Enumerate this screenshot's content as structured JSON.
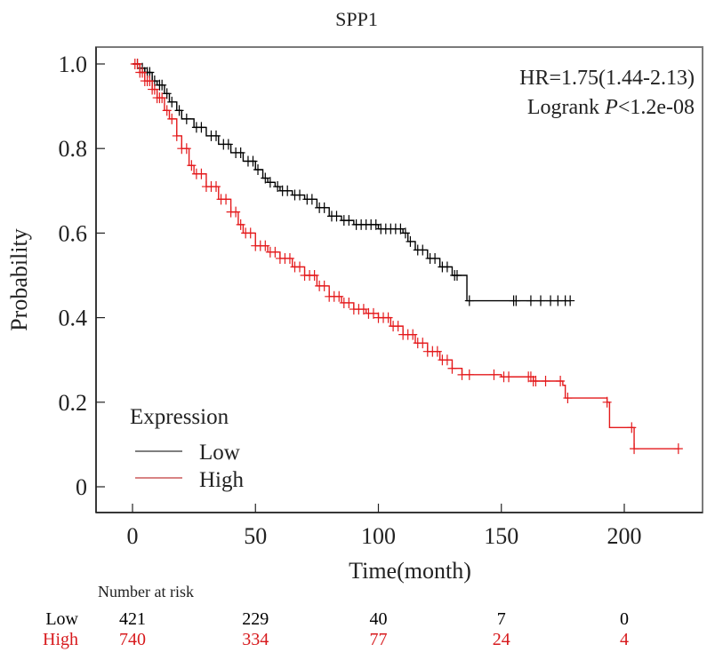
{
  "chart_data": {
    "type": "line",
    "subtype": "kaplan-meier",
    "title": "SPP1",
    "xlabel": "Time(month)",
    "ylabel": "Probability",
    "xlim": [
      -15,
      231
    ],
    "ylim": [
      -0.06,
      1.04
    ],
    "xticks": [
      0,
      50,
      100,
      150,
      200
    ],
    "xtick_labels": [
      "0",
      "50",
      "100",
      "150",
      "200"
    ],
    "yticks": [
      0,
      0.2,
      0.4,
      0.6,
      0.8,
      1.0
    ],
    "ytick_labels": [
      "0",
      "0.2",
      "0.4",
      "0.6",
      "0.8",
      "1.0"
    ],
    "grid": false,
    "annotation": {
      "hr_line": "HR=1.75(1.44-2.13)",
      "logrank_prefix": "Logrank ",
      "logrank_p": "P",
      "logrank_suffix": "<1.2e-08",
      "placement": "top-right"
    },
    "legend": {
      "title": "Expression",
      "placement": "bottom-left",
      "entries": [
        {
          "label": "Low",
          "color": "#000000"
        },
        {
          "label": "High",
          "color": "#e41a1c"
        }
      ]
    },
    "series": [
      {
        "name": "Low",
        "color": "#000000",
        "points": [
          [
            0,
            1.0
          ],
          [
            3,
            0.99
          ],
          [
            5,
            0.98
          ],
          [
            8,
            0.96
          ],
          [
            10,
            0.95
          ],
          [
            13,
            0.93
          ],
          [
            15,
            0.91
          ],
          [
            18,
            0.89
          ],
          [
            20,
            0.87
          ],
          [
            25,
            0.85
          ],
          [
            30,
            0.83
          ],
          [
            35,
            0.81
          ],
          [
            40,
            0.79
          ],
          [
            45,
            0.77
          ],
          [
            50,
            0.75
          ],
          [
            53,
            0.73
          ],
          [
            55,
            0.72
          ],
          [
            58,
            0.71
          ],
          [
            60,
            0.7
          ],
          [
            65,
            0.69
          ],
          [
            70,
            0.68
          ],
          [
            75,
            0.66
          ],
          [
            80,
            0.64
          ],
          [
            85,
            0.63
          ],
          [
            90,
            0.62
          ],
          [
            100,
            0.61
          ],
          [
            110,
            0.6
          ],
          [
            112,
            0.58
          ],
          [
            115,
            0.56
          ],
          [
            120,
            0.54
          ],
          [
            125,
            0.52
          ],
          [
            130,
            0.5
          ],
          [
            136,
            0.44
          ],
          [
            178,
            0.44
          ]
        ],
        "censor_times": [
          2,
          4,
          5,
          6,
          7,
          8,
          9,
          11,
          12,
          14,
          16,
          19,
          22,
          26,
          28,
          32,
          34,
          37,
          39,
          42,
          44,
          47,
          49,
          51,
          54,
          56,
          59,
          61,
          63,
          66,
          68,
          71,
          73,
          76,
          78,
          81,
          83,
          86,
          88,
          91,
          93,
          95,
          97,
          99,
          101,
          103,
          105,
          107,
          109,
          111,
          113,
          116,
          118,
          121,
          123,
          126,
          128,
          131,
          132,
          137,
          155,
          156,
          162,
          166,
          170,
          173,
          176,
          178
        ]
      },
      {
        "name": "High",
        "color": "#e41a1c",
        "points": [
          [
            0,
            1.0
          ],
          [
            3,
            0.98
          ],
          [
            5,
            0.96
          ],
          [
            8,
            0.94
          ],
          [
            10,
            0.92
          ],
          [
            13,
            0.89
          ],
          [
            15,
            0.87
          ],
          [
            18,
            0.83
          ],
          [
            20,
            0.8
          ],
          [
            23,
            0.76
          ],
          [
            25,
            0.74
          ],
          [
            30,
            0.71
          ],
          [
            35,
            0.68
          ],
          [
            40,
            0.65
          ],
          [
            43,
            0.62
          ],
          [
            45,
            0.6
          ],
          [
            50,
            0.57
          ],
          [
            55,
            0.555
          ],
          [
            60,
            0.54
          ],
          [
            65,
            0.52
          ],
          [
            70,
            0.5
          ],
          [
            75,
            0.475
          ],
          [
            80,
            0.45
          ],
          [
            85,
            0.435
          ],
          [
            90,
            0.42
          ],
          [
            95,
            0.41
          ],
          [
            100,
            0.4
          ],
          [
            105,
            0.38
          ],
          [
            110,
            0.36
          ],
          [
            115,
            0.34
          ],
          [
            120,
            0.32
          ],
          [
            125,
            0.3
          ],
          [
            130,
            0.28
          ],
          [
            134,
            0.265
          ],
          [
            150,
            0.26
          ],
          [
            163,
            0.25
          ],
          [
            175,
            0.24
          ],
          [
            176,
            0.21
          ],
          [
            193,
            0.2
          ],
          [
            194,
            0.14
          ],
          [
            203,
            0.14
          ],
          [
            204,
            0.09
          ],
          [
            222,
            0.09
          ]
        ],
        "censor_times": [
          1,
          2,
          3,
          4,
          5,
          6,
          7,
          8,
          9,
          10,
          11,
          12,
          14,
          16,
          18,
          20,
          22,
          24,
          26,
          28,
          30,
          32,
          34,
          36,
          38,
          40,
          42,
          44,
          46,
          48,
          50,
          52,
          54,
          56,
          58,
          60,
          62,
          64,
          66,
          68,
          70,
          72,
          74,
          76,
          78,
          80,
          82,
          84,
          86,
          88,
          90,
          92,
          94,
          96,
          98,
          100,
          102,
          104,
          106,
          108,
          110,
          112,
          114,
          116,
          118,
          120,
          122,
          124,
          126,
          128,
          130,
          134,
          137,
          147,
          151,
          153,
          161,
          162,
          163,
          164,
          168,
          174,
          177,
          193,
          203,
          204,
          222
        ]
      }
    ],
    "risk_table": {
      "title": "Number at risk",
      "times": [
        0,
        50,
        100,
        150,
        200
      ],
      "rows": [
        {
          "label": "Low",
          "color": "#000000",
          "values": [
            421,
            229,
            40,
            7,
            0
          ]
        },
        {
          "label": "High",
          "color": "#d7191c",
          "values": [
            740,
            334,
            77,
            24,
            4
          ]
        }
      ]
    }
  }
}
